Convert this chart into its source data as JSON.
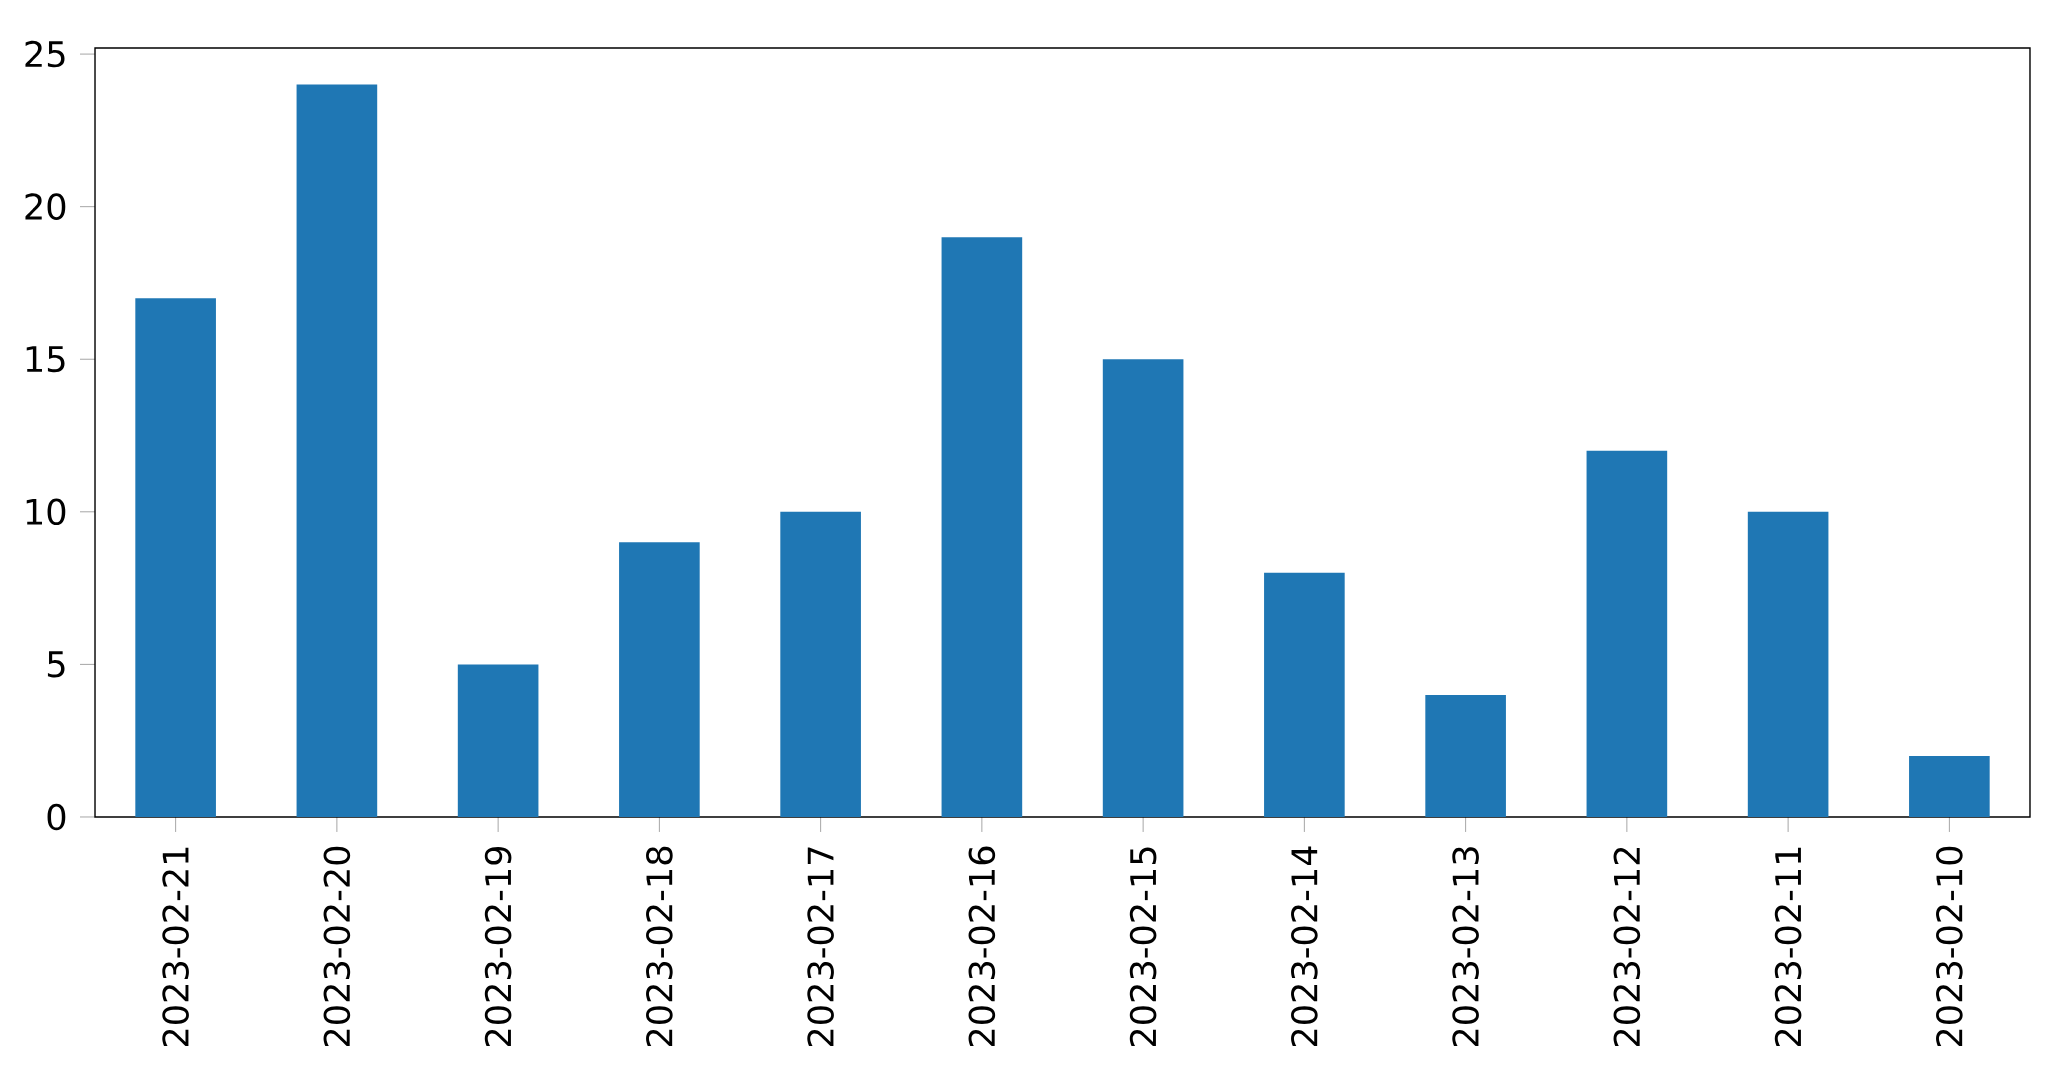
{
  "chart_data": {
    "type": "bar",
    "categories": [
      "2023-02-21",
      "2023-02-20",
      "2023-02-19",
      "2023-02-18",
      "2023-02-17",
      "2023-02-16",
      "2023-02-15",
      "2023-02-14",
      "2023-02-13",
      "2023-02-12",
      "2023-02-11",
      "2023-02-10"
    ],
    "values": [
      17,
      24,
      5,
      9,
      10,
      19,
      15,
      8,
      4,
      12,
      10,
      2
    ],
    "color": "#1f77b4",
    "ylim": [
      0,
      25.2
    ],
    "yticks": [
      0,
      5,
      10,
      15,
      20,
      25
    ]
  }
}
